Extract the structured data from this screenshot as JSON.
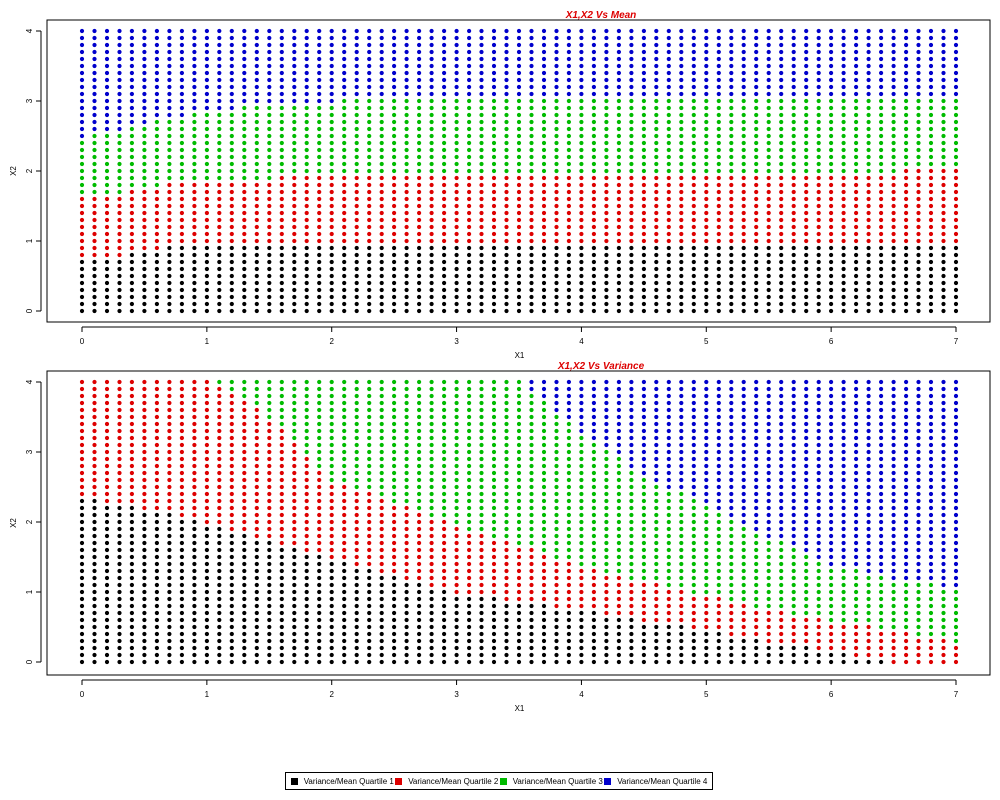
{
  "colors": {
    "q1": "#000000",
    "q2": "#dd0000",
    "q3": "#00bb00",
    "q4": "#0000cc",
    "title": "#dd0000"
  },
  "legend": {
    "placement": "bottom-center",
    "items": [
      {
        "label": "Variance/Mean Quartile 1",
        "color": "#000000"
      },
      {
        "label": "Variance/Mean Quartile 2",
        "color": "#dd0000"
      },
      {
        "label": "Variance/Mean Quartile 3",
        "color": "#00bb00"
      },
      {
        "label": "Variance/Mean Quartile 4",
        "color": "#0000cc"
      }
    ]
  },
  "chart_data": [
    {
      "type": "scatter",
      "title": "X1,X2 Vs Mean",
      "xlabel": "X1",
      "ylabel": "X2",
      "xlim": [
        0,
        7
      ],
      "ylim": [
        0,
        4
      ],
      "xticks": [
        "0",
        "1",
        "2",
        "3",
        "4",
        "5",
        "6",
        "7"
      ],
      "yticks": [
        "0",
        "1",
        "2",
        "3",
        "4"
      ],
      "grid": {
        "x_step": 0.1,
        "y_step": 0.1
      },
      "boundaries": {
        "x": [
          0,
          0.3,
          0.4,
          0.6,
          1.0,
          1.5,
          2.0,
          3.0,
          3.5,
          4.0,
          5.0,
          6.0,
          6.5,
          6.8,
          7.0
        ],
        "q1_q2": [
          0.75,
          0.8,
          0.85,
          0.9,
          0.93,
          0.95,
          0.97,
          1.0,
          1.0,
          1.0,
          1.0,
          1.0,
          1.0,
          1.0,
          1.0
        ],
        "q2_q3": [
          1.65,
          1.7,
          1.75,
          1.8,
          1.85,
          1.9,
          1.95,
          2.0,
          2.0,
          2.0,
          2.0,
          2.0,
          2.0,
          2.1,
          2.1
        ],
        "q3_q4": [
          2.5,
          2.6,
          2.65,
          2.75,
          2.85,
          2.95,
          3.0,
          3.05,
          3.05,
          3.1,
          3.1,
          3.1,
          3.1,
          3.1,
          3.1
        ]
      }
    },
    {
      "type": "scatter",
      "title": "X1,X2 Vs Variance",
      "xlabel": "X1",
      "ylabel": "X2",
      "xlim": [
        0,
        7
      ],
      "ylim": [
        0,
        4
      ],
      "xticks": [
        "0",
        "1",
        "2",
        "3",
        "4",
        "5",
        "6",
        "7"
      ],
      "yticks": [
        "0",
        "1",
        "2",
        "3",
        "4"
      ],
      "grid": {
        "x_step": 0.1,
        "y_step": 0.1
      },
      "boundaries": {
        "x": [
          0,
          1.0,
          1.5,
          2.0,
          2.5,
          3.0,
          3.5,
          4.0,
          4.5,
          5.0,
          5.5,
          6.0,
          6.5,
          7.0
        ],
        "q1_q2": [
          2.35,
          2.0,
          1.75,
          1.5,
          1.25,
          1.0,
          0.85,
          0.75,
          0.6,
          0.45,
          0.3,
          0.15,
          0.0,
          0.0
        ],
        "q2_q3": [
          4.05,
          4.05,
          3.5,
          2.6,
          2.3,
          1.95,
          1.7,
          1.35,
          1.15,
          0.95,
          0.75,
          0.6,
          0.45,
          0.3
        ],
        "q3_q4": [
          4.05,
          4.05,
          4.05,
          4.05,
          4.05,
          4.05,
          4.05,
          3.3,
          2.65,
          2.25,
          1.8,
          1.4,
          1.2,
          1.05
        ]
      }
    }
  ]
}
